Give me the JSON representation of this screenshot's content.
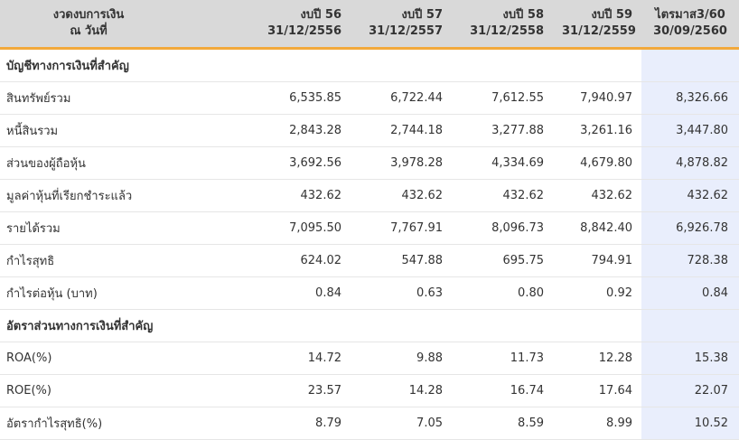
{
  "header": {
    "label": [
      "งวดงบการเงิน",
      "ณ วันที่"
    ],
    "periods": [
      {
        "line1": "งบปี 56",
        "line2": "31/12/2556"
      },
      {
        "line1": "งบปี 57",
        "line2": "31/12/2557"
      },
      {
        "line1": "งบปี 58",
        "line2": "31/12/2558"
      },
      {
        "line1": "งบปี 59",
        "line2": "31/12/2559"
      },
      {
        "line1": "ไตรมาส3/60",
        "line2": "30/09/2560"
      }
    ]
  },
  "rows": [
    {
      "type": "section",
      "label": "บัญชีทางการเงินที่สำคัญ"
    },
    {
      "type": "data",
      "label": "สินทรัพย์รวม",
      "values": [
        "6,535.85",
        "6,722.44",
        "7,612.55",
        "7,940.97",
        "8,326.66"
      ]
    },
    {
      "type": "data",
      "label": "หนี้สินรวม",
      "values": [
        "2,843.28",
        "2,744.18",
        "3,277.88",
        "3,261.16",
        "3,447.80"
      ]
    },
    {
      "type": "data",
      "label": "ส่วนของผู้ถือหุ้น",
      "values": [
        "3,692.56",
        "3,978.28",
        "4,334.69",
        "4,679.80",
        "4,878.82"
      ]
    },
    {
      "type": "data",
      "label": "มูลค่าหุ้นที่เรียกชำระแล้ว",
      "values": [
        "432.62",
        "432.62",
        "432.62",
        "432.62",
        "432.62"
      ]
    },
    {
      "type": "data",
      "label": "รายได้รวม",
      "values": [
        "7,095.50",
        "7,767.91",
        "8,096.73",
        "8,842.40",
        "6,926.78"
      ]
    },
    {
      "type": "data",
      "label": "กำไรสุทธิ",
      "values": [
        "624.02",
        "547.88",
        "695.75",
        "794.91",
        "728.38"
      ]
    },
    {
      "type": "data",
      "label": "กำไรต่อหุ้น (บาท)",
      "values": [
        "0.84",
        "0.63",
        "0.80",
        "0.92",
        "0.84"
      ]
    },
    {
      "type": "section",
      "label": "อัตราส่วนทางการเงินที่สำคัญ"
    },
    {
      "type": "data",
      "label": "ROA(%)",
      "values": [
        "14.72",
        "9.88",
        "11.73",
        "12.28",
        "15.38"
      ]
    },
    {
      "type": "data",
      "label": "ROE(%)",
      "values": [
        "23.57",
        "14.28",
        "16.74",
        "17.64",
        "22.07"
      ]
    },
    {
      "type": "data",
      "label": "อัตรากำไรสุทธิ(%)",
      "values": [
        "8.79",
        "7.05",
        "8.59",
        "8.99",
        "10.52"
      ]
    }
  ],
  "colors": {
    "header_bg": "#d9d9d9",
    "header_border": "#f2a93b",
    "highlight_column": "#e9eefc",
    "row_divider": "#e6e6e6"
  }
}
